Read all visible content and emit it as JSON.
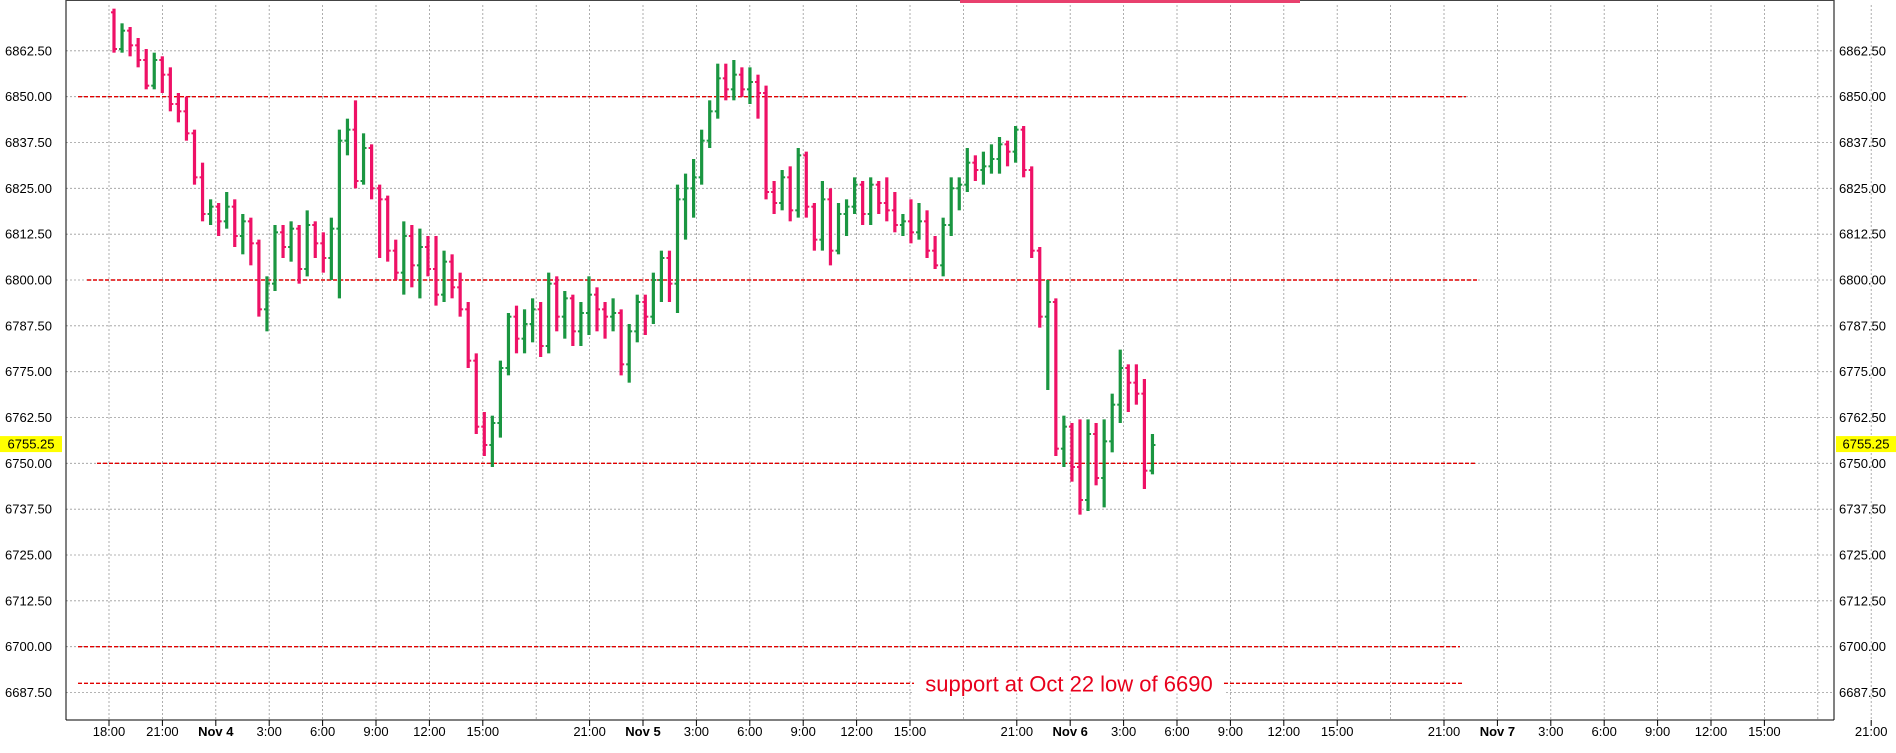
{
  "chart_data": {
    "type": "ohlc",
    "title": "",
    "xlabel": "",
    "ylabel": "",
    "ylim": [
      6680.0,
      6875.0
    ],
    "grid": true,
    "y_ticks": [
      "6862.50",
      "6850.00",
      "6837.50",
      "6825.00",
      "6812.50",
      "6800.00",
      "6787.50",
      "6775.00",
      "6762.50",
      "6750.00",
      "6737.50",
      "6725.00",
      "6712.50",
      "6700.00",
      "6687.50"
    ],
    "y_tick_values": [
      6862.5,
      6850,
      6837.5,
      6825,
      6812.5,
      6800,
      6787.5,
      6775,
      6762.5,
      6750,
      6737.5,
      6725,
      6712.5,
      6700,
      6687.5
    ],
    "last_price": "6755.25",
    "last_price_value": 6755.25,
    "x_ticks": [
      {
        "label": "18:00",
        "bold": false
      },
      {
        "label": "21:00",
        "bold": false
      },
      {
        "label": "Nov 4",
        "bold": true
      },
      {
        "label": "3:00",
        "bold": false
      },
      {
        "label": "6:00",
        "bold": false
      },
      {
        "label": "9:00",
        "bold": false
      },
      {
        "label": "12:00",
        "bold": false
      },
      {
        "label": "15:00",
        "bold": false
      },
      {
        "label": "21:00",
        "bold": false
      },
      {
        "label": "Nov 5",
        "bold": true
      },
      {
        "label": "3:00",
        "bold": false
      },
      {
        "label": "6:00",
        "bold": false
      },
      {
        "label": "9:00",
        "bold": false
      },
      {
        "label": "12:00",
        "bold": false
      },
      {
        "label": "15:00",
        "bold": false
      },
      {
        "label": "21:00",
        "bold": false
      },
      {
        "label": "Nov 6",
        "bold": true
      },
      {
        "label": "3:00",
        "bold": false
      },
      {
        "label": "6:00",
        "bold": false
      },
      {
        "label": "9:00",
        "bold": false
      },
      {
        "label": "12:00",
        "bold": false
      },
      {
        "label": "15:00",
        "bold": false
      },
      {
        "label": "21:00",
        "bold": false
      },
      {
        "label": "Nov 7",
        "bold": true
      },
      {
        "label": "3:00",
        "bold": false
      },
      {
        "label": "6:00",
        "bold": false
      },
      {
        "label": "9:00",
        "bold": false
      },
      {
        "label": "12:00",
        "bold": false
      },
      {
        "label": "15:00",
        "bold": false
      },
      {
        "label": "21:00",
        "bold": false
      }
    ],
    "horizontal_levels": [
      {
        "value": 6850.0
      },
      {
        "value": 6800.0
      },
      {
        "value": 6750.0
      },
      {
        "value": 6700.0
      },
      {
        "value": 6690.0
      }
    ],
    "annotations": [
      {
        "text": "support at Oct 22 low of 6690",
        "value": 6690.0
      }
    ],
    "series": [
      {
        "values": [
          [
            6873,
            6874,
            6862,
            6863
          ],
          [
            6863,
            6870,
            6862,
            6868
          ],
          [
            6868,
            6869,
            6861,
            6864
          ],
          [
            6864,
            6866,
            6858,
            6860
          ],
          [
            6860,
            6863,
            6852,
            6853
          ],
          [
            6853,
            6862,
            6852,
            6860
          ],
          [
            6860,
            6861,
            6851,
            6856
          ],
          [
            6856,
            6858,
            6846,
            6848
          ],
          [
            6848,
            6851,
            6843,
            6846
          ],
          [
            6846,
            6850,
            6838,
            6840
          ],
          [
            6840,
            6841,
            6826,
            6828
          ],
          [
            6828,
            6832,
            6816,
            6818
          ],
          [
            6818,
            6822,
            6815,
            6820
          ],
          [
            6820,
            6821,
            6812,
            6816
          ],
          [
            6816,
            6824,
            6814,
            6820
          ],
          [
            6820,
            6822,
            6809,
            6812
          ],
          [
            6812,
            6818,
            6807,
            6816
          ],
          [
            6816,
            6817,
            6804,
            6810
          ],
          [
            6810,
            6811,
            6790,
            6792
          ],
          [
            6792,
            6801,
            6786,
            6799
          ],
          [
            6799,
            6815,
            6797,
            6813
          ],
          [
            6813,
            6815,
            6806,
            6809
          ],
          [
            6809,
            6816,
            6805,
            6814
          ],
          [
            6814,
            6815,
            6799,
            6803
          ],
          [
            6803,
            6819,
            6801,
            6815
          ],
          [
            6815,
            6816,
            6806,
            6810
          ],
          [
            6810,
            6813,
            6802,
            6806
          ],
          [
            6806,
            6817,
            6800,
            6814
          ],
          [
            6814,
            6841,
            6795,
            6838
          ],
          [
            6838,
            6844,
            6834,
            6841
          ],
          [
            6841,
            6849,
            6825,
            6827
          ],
          [
            6827,
            6840,
            6826,
            6836
          ],
          [
            6836,
            6837,
            6822,
            6825
          ],
          [
            6825,
            6826,
            6806,
            6822
          ],
          [
            6822,
            6823,
            6805,
            6808
          ],
          [
            6808,
            6811,
            6800,
            6802
          ],
          [
            6802,
            6816,
            6796,
            6812
          ],
          [
            6812,
            6815,
            6798,
            6804
          ],
          [
            6804,
            6814,
            6795,
            6809
          ],
          [
            6809,
            6812,
            6801,
            6803
          ],
          [
            6803,
            6812,
            6793,
            6796
          ],
          [
            6796,
            6808,
            6794,
            6805
          ],
          [
            6805,
            6807,
            6795,
            6798
          ],
          [
            6798,
            6802,
            6790,
            6792
          ],
          [
            6792,
            6794,
            6776,
            6778
          ],
          [
            6778,
            6780,
            6758,
            6760
          ],
          [
            6760,
            6764,
            6752,
            6755
          ],
          [
            6755,
            6763,
            6749,
            6761
          ],
          [
            6761,
            6778,
            6757,
            6776
          ],
          [
            6776,
            6791,
            6774,
            6790
          ],
          [
            6790,
            6793,
            6780,
            6784
          ],
          [
            6784,
            6792,
            6780,
            6788
          ],
          [
            6788,
            6795,
            6783,
            6792
          ],
          [
            6792,
            6794,
            6779,
            6782
          ],
          [
            6782,
            6802,
            6780,
            6799
          ],
          [
            6799,
            6801,
            6786,
            6790
          ],
          [
            6790,
            6797,
            6784,
            6795
          ],
          [
            6795,
            6796,
            6782,
            6786
          ],
          [
            6786,
            6794,
            6782,
            6791
          ],
          [
            6791,
            6801,
            6785,
            6796
          ],
          [
            6796,
            6798,
            6786,
            6792
          ],
          [
            6792,
            6794,
            6784,
            6790
          ],
          [
            6790,
            6795,
            6786,
            6791
          ],
          [
            6791,
            6792,
            6774,
            6777
          ],
          [
            6777,
            6788,
            6772,
            6786
          ],
          [
            6786,
            6796,
            6783,
            6794
          ],
          [
            6794,
            6796,
            6785,
            6790
          ],
          [
            6790,
            6802,
            6788,
            6800
          ],
          [
            6800,
            6808,
            6794,
            6806
          ],
          [
            6806,
            6808,
            6794,
            6799
          ],
          [
            6799,
            6826,
            6791,
            6822
          ],
          [
            6822,
            6829,
            6811,
            6825
          ],
          [
            6825,
            6833,
            6817,
            6828
          ],
          [
            6828,
            6841,
            6826,
            6838
          ],
          [
            6838,
            6849,
            6836,
            6846
          ],
          [
            6846,
            6859,
            6844,
            6855
          ],
          [
            6855,
            6859,
            6849,
            6852
          ],
          [
            6852,
            6860,
            6849,
            6856
          ],
          [
            6856,
            6858,
            6850,
            6852
          ],
          [
            6852,
            6858,
            6848,
            6854
          ],
          [
            6854,
            6856,
            6844,
            6851
          ],
          [
            6851,
            6853,
            6822,
            6824
          ],
          [
            6824,
            6827,
            6818,
            6821
          ],
          [
            6821,
            6830,
            6819,
            6828
          ],
          [
            6828,
            6831,
            6816,
            6819
          ],
          [
            6819,
            6836,
            6817,
            6834
          ],
          [
            6834,
            6835,
            6817,
            6820
          ],
          [
            6820,
            6821,
            6808,
            6811
          ],
          [
            6811,
            6827,
            6808,
            6822
          ],
          [
            6822,
            6825,
            6804,
            6808
          ],
          [
            6808,
            6821,
            6807,
            6818
          ],
          [
            6818,
            6822,
            6812,
            6820
          ],
          [
            6820,
            6828,
            6818,
            6826
          ],
          [
            6826,
            6827,
            6815,
            6818
          ],
          [
            6818,
            6828,
            6815,
            6826
          ],
          [
            6826,
            6827,
            6818,
            6821
          ],
          [
            6821,
            6828,
            6816,
            6819
          ],
          [
            6819,
            6824,
            6813,
            6815
          ],
          [
            6815,
            6818,
            6812,
            6816
          ],
          [
            6816,
            6822,
            6810,
            6813
          ],
          [
            6813,
            6821,
            6811,
            6816
          ],
          [
            6816,
            6819,
            6806,
            6808
          ],
          [
            6808,
            6812,
            6803,
            6804
          ],
          [
            6804,
            6817,
            6801,
            6815
          ],
          [
            6815,
            6828,
            6812,
            6825
          ],
          [
            6825,
            6828,
            6819,
            6826
          ],
          [
            6826,
            6836,
            6824,
            6832
          ],
          [
            6832,
            6834,
            6827,
            6830
          ],
          [
            6830,
            6835,
            6826,
            6831
          ],
          [
            6831,
            6837,
            6829,
            6833
          ],
          [
            6833,
            6839,
            6829,
            6837
          ],
          [
            6837,
            6838,
            6831,
            6835
          ],
          [
            6835,
            6842,
            6832,
            6841
          ],
          [
            6841,
            6842,
            6828,
            6830
          ],
          [
            6830,
            6831,
            6806,
            6808
          ],
          [
            6808,
            6809,
            6787,
            6790
          ],
          [
            6790,
            6800,
            6770,
            6794
          ],
          [
            6794,
            6795,
            6752,
            6754
          ],
          [
            6754,
            6763,
            6749,
            6760
          ],
          [
            6760,
            6761,
            6745,
            6749
          ],
          [
            6749,
            6762,
            6736,
            6740
          ],
          [
            6740,
            6762,
            6737,
            6758
          ],
          [
            6758,
            6761,
            6744,
            6746
          ],
          [
            6746,
            6762,
            6738,
            6756
          ],
          [
            6756,
            6769,
            6753,
            6766
          ],
          [
            6766,
            6781,
            6761,
            6776
          ],
          [
            6776,
            6777,
            6764,
            6772
          ],
          [
            6772,
            6777,
            6766,
            6769
          ],
          [
            6769,
            6773,
            6743,
            6748
          ],
          [
            6748,
            6758,
            6747,
            6755
          ]
        ]
      }
    ]
  }
}
